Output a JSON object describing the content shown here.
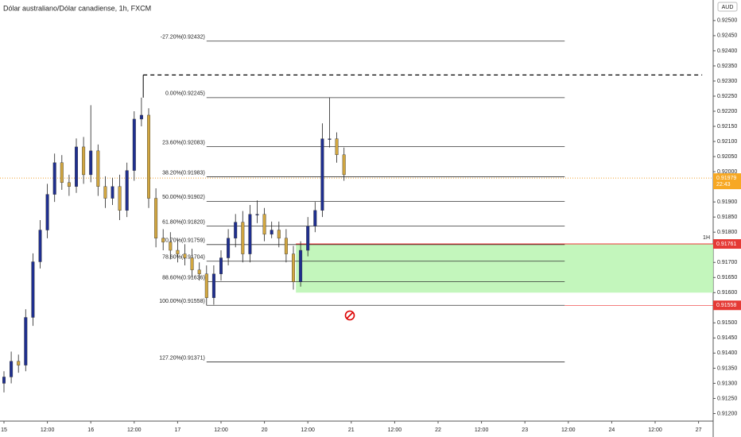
{
  "chart_data": {
    "type": "candlestick",
    "title": "Dólar australiano/Dólar canadiense, 1h, FXCM",
    "currency": "AUD",
    "interval_label": "1H",
    "up_color": "#1f2f8f",
    "down_color": "#d1a640",
    "x": [
      0,
      2,
      4,
      6,
      8,
      10,
      12,
      14,
      16,
      18,
      20,
      22,
      24,
      26,
      28,
      30,
      32,
      34,
      36,
      38,
      40,
      42,
      44,
      46,
      48,
      50,
      52,
      54,
      56,
      58,
      60,
      62,
      64,
      66,
      68,
      70,
      72,
      74,
      76,
      78,
      80,
      82,
      84,
      86,
      88,
      90,
      92,
      94
    ],
    "open": [
      0.913,
      0.91321,
      0.91373,
      0.9136,
      0.91518,
      0.91702,
      0.91807,
      0.91925,
      0.9203,
      0.91964,
      0.91951,
      0.92082,
      0.9199,
      0.92069,
      0.91951,
      0.91912,
      0.91951,
      0.91872,
      0.92004,
      0.92174,
      0.92187,
      0.91912,
      0.9178,
      0.91767,
      0.9174,
      0.91728,
      0.91715,
      0.91675,
      0.91662,
      0.91583,
      0.91662,
      0.91715,
      0.9178,
      0.91833,
      0.91728,
      0.91859,
      0.91859,
      0.91793,
      0.91807,
      0.9178,
      0.91728,
      0.91636,
      0.9174,
      0.9182,
      0.91872,
      0.92109,
      0.92109,
      0.92056
    ],
    "close": [
      0.91321,
      0.91373,
      0.9136,
      0.91518,
      0.91702,
      0.91807,
      0.91925,
      0.9203,
      0.91964,
      0.91951,
      0.92082,
      0.9199,
      0.92069,
      0.91951,
      0.91912,
      0.91951,
      0.91872,
      0.92004,
      0.92174,
      0.92187,
      0.91912,
      0.9178,
      0.91767,
      0.9174,
      0.91728,
      0.91715,
      0.91675,
      0.91662,
      0.91583,
      0.91662,
      0.91715,
      0.9178,
      0.91833,
      0.91728,
      0.91859,
      0.91859,
      0.91793,
      0.91807,
      0.9178,
      0.91728,
      0.91636,
      0.9174,
      0.9182,
      0.91872,
      0.92109,
      0.92109,
      0.92056,
      0.9199
    ],
    "high": [
      0.9134,
      0.91405,
      0.91395,
      0.91545,
      0.9173,
      0.9184,
      0.9196,
      0.9206,
      0.92055,
      0.9199,
      0.9211,
      0.92115,
      0.9222,
      0.9209,
      0.91985,
      0.9198,
      0.9199,
      0.9203,
      0.922,
      0.92245,
      0.9221,
      0.91945,
      0.9181,
      0.918,
      0.91775,
      0.9176,
      0.91745,
      0.917,
      0.9169,
      0.9169,
      0.9174,
      0.9181,
      0.9186,
      0.9187,
      0.9189,
      0.91905,
      0.9188,
      0.91835,
      0.91835,
      0.9181,
      0.91755,
      0.9177,
      0.9185,
      0.919,
      0.9216,
      0.92245,
      0.9213,
      0.9208
    ],
    "low": [
      0.9127,
      0.913,
      0.91335,
      0.9134,
      0.9149,
      0.9168,
      0.9178,
      0.919,
      0.9194,
      0.9192,
      0.9193,
      0.9196,
      0.91965,
      0.9192,
      0.9188,
      0.9189,
      0.9184,
      0.9185,
      0.9197,
      0.9215,
      0.9188,
      0.9175,
      0.9174,
      0.9171,
      0.917,
      0.9169,
      0.9165,
      0.9164,
      0.91558,
      0.9156,
      0.9164,
      0.9169,
      0.9175,
      0.917,
      0.917,
      0.9183,
      0.9177,
      0.9178,
      0.9175,
      0.917,
      0.9161,
      0.9162,
      0.9172,
      0.918,
      0.9185,
      0.9208,
      0.9203,
      0.9197
    ],
    "ylim": [
      0.91175,
      0.92568
    ],
    "yticks": [
      {
        "value": 0.925,
        "label": "0.92500"
      },
      {
        "value": 0.9245,
        "label": "0.92450"
      },
      {
        "value": 0.924,
        "label": "0.92400"
      },
      {
        "value": 0.9235,
        "label": "0.92350"
      },
      {
        "value": 0.923,
        "label": "0.92300"
      },
      {
        "value": 0.9225,
        "label": "0.92250"
      },
      {
        "value": 0.922,
        "label": "0.92200"
      },
      {
        "value": 0.9215,
        "label": "0.92150"
      },
      {
        "value": 0.921,
        "label": "0.92100"
      },
      {
        "value": 0.9205,
        "label": "0.92050"
      },
      {
        "value": 0.92,
        "label": "0.92000"
      },
      {
        "value": 0.9195,
        "label": "0.91950"
      },
      {
        "value": 0.919,
        "label": "0.91900"
      },
      {
        "value": 0.9185,
        "label": "0.91850"
      },
      {
        "value": 0.918,
        "label": "0.91800"
      },
      {
        "value": 0.9175,
        "label": "0.91750"
      },
      {
        "value": 0.917,
        "label": "0.91700"
      },
      {
        "value": 0.9165,
        "label": "0.91650"
      },
      {
        "value": 0.916,
        "label": "0.91600"
      },
      {
        "value": 0.9155,
        "label": "0.91550"
      },
      {
        "value": 0.915,
        "label": "0.91500"
      },
      {
        "value": 0.9145,
        "label": "0.91450"
      },
      {
        "value": 0.914,
        "label": "0.91400"
      },
      {
        "value": 0.9135,
        "label": "0.91350"
      },
      {
        "value": 0.913,
        "label": "0.91300"
      },
      {
        "value": 0.9125,
        "label": "0.91250"
      },
      {
        "value": 0.912,
        "label": "0.91200"
      }
    ],
    "xticks": [
      {
        "value": 0,
        "label": "15"
      },
      {
        "value": 12,
        "label": "12:00"
      },
      {
        "value": 24,
        "label": "16"
      },
      {
        "value": 36,
        "label": "12:00"
      },
      {
        "value": 48,
        "label": "17"
      },
      {
        "value": 60,
        "label": "12:00"
      },
      {
        "value": 72,
        "label": "20"
      },
      {
        "value": 84,
        "label": "12:00"
      },
      {
        "value": 96,
        "label": "21"
      },
      {
        "value": 108,
        "label": "12:00"
      },
      {
        "value": 120,
        "label": "22"
      },
      {
        "value": 132,
        "label": "12:00"
      },
      {
        "value": 144,
        "label": "23"
      },
      {
        "value": 156,
        "label": "12:00"
      },
      {
        "value": 168,
        "label": "24"
      },
      {
        "value": 180,
        "label": "12:00"
      },
      {
        "value": 192,
        "label": "27"
      }
    ],
    "fib_levels": [
      {
        "label": "-27.20%(0.92432)",
        "value": 0.92432
      },
      {
        "label": "0.00%(0.92245)",
        "value": 0.92245
      },
      {
        "label": "23.60%(0.92083)",
        "value": 0.92083
      },
      {
        "label": "38.20%(0.91983)",
        "value": 0.91983
      },
      {
        "label": "50.00%(0.91902)",
        "value": 0.91902
      },
      {
        "label": "61.80%(0.91820)",
        "value": 0.9182
      },
      {
        "label": "70.70%(0.91759)",
        "value": 0.91759
      },
      {
        "label": "78.60%(0.91704)",
        "value": 0.91704
      },
      {
        "label": "88.60%(0.91636)",
        "value": 0.91636
      },
      {
        "label": "100.00%(0.91558)",
        "value": 0.91558
      },
      {
        "label": "127.20%(0.91371)",
        "value": 0.91371
      }
    ],
    "fib_x": [
      56,
      155
    ],
    "dashed_level": {
      "value": 0.9232,
      "x": [
        38.5,
        193
      ]
    },
    "zone": {
      "top": 0.91761,
      "bottom": 0.916,
      "x_start": 80.7
    },
    "current_price": {
      "label": "0.91979",
      "value": 0.91979,
      "countdown": "22:43"
    },
    "price_markers": [
      {
        "label": "0.91761",
        "value": 0.91761
      },
      {
        "label": "0.91558",
        "value": 0.91558
      }
    ]
  }
}
